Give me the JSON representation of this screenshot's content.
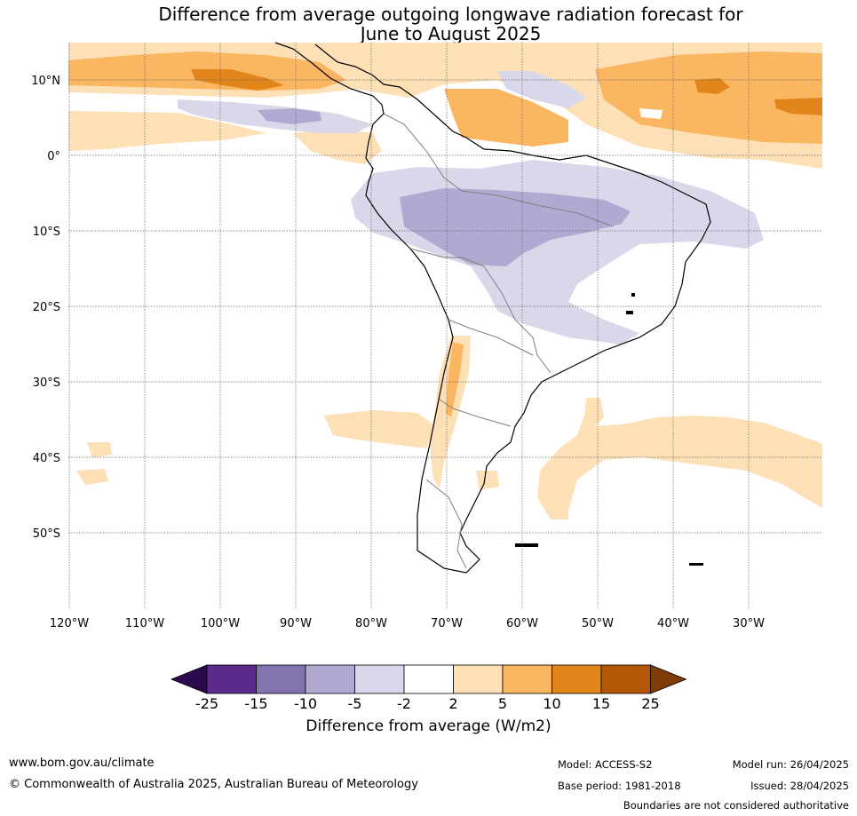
{
  "title_line1": "Difference from average outgoing longwave radiation forecast for",
  "title_line2": "June to August 2025",
  "lat_labels": [
    "10°N",
    "0°",
    "10°S",
    "20°S",
    "30°S",
    "40°S",
    "50°S"
  ],
  "lon_labels": [
    "120°W",
    "110°W",
    "100°W",
    "90°W",
    "80°W",
    "70°W",
    "60°W",
    "50°W",
    "40°W",
    "30°W"
  ],
  "colorbar": {
    "label": "Difference from average (W/m2)",
    "ticks": [
      "-25",
      "-15",
      "-10",
      "-5",
      "-2",
      "2",
      "5",
      "10",
      "15",
      "25"
    ],
    "colors": [
      "#2d0a4e",
      "#5b2a8a",
      "#8373ae",
      "#b1a9d1",
      "#d8d8ea",
      "#ffffff",
      "#fde0b6",
      "#fbb661",
      "#e2861b",
      "#b35707",
      "#7f3b08"
    ]
  },
  "footer": {
    "website": "www.bom.gov.au/climate",
    "copyright": "© Commonwealth of Australia 2025, Australian Bureau of Meteorology",
    "model": "Model: ACCESS-S2",
    "base_period": "Base period: 1981-2018",
    "model_run": "Model run: 26/04/2025",
    "issued": "Issued: 28/04/2025",
    "disclaimer": "Boundaries are not considered authoritative"
  }
}
